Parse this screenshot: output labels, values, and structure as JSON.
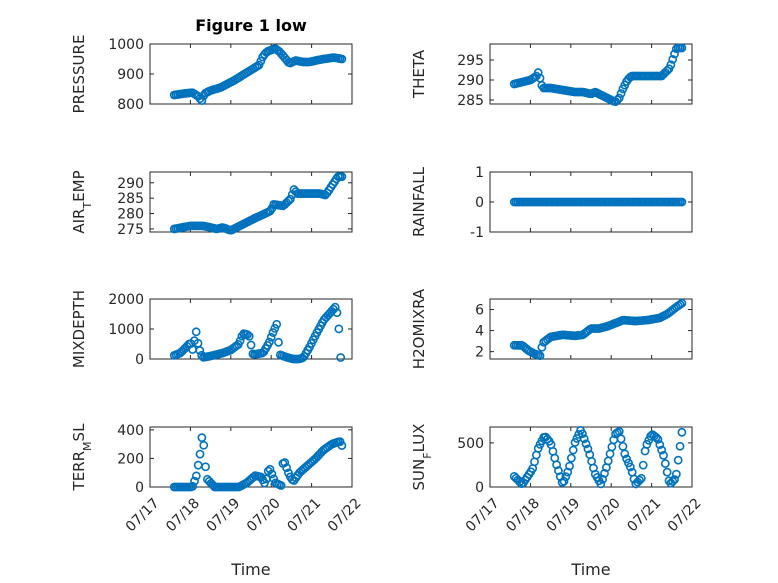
{
  "figure_title": "Figure 1 low",
  "chart_data": [
    {
      "type": "scatter",
      "name": "pressure",
      "ylabel_main": "PRESSURE",
      "ylabel_sub": "",
      "yticks": [
        "800",
        "900",
        "1000"
      ],
      "ylim": [
        800,
        1000
      ],
      "xticks": [
        "07/17",
        "07/18",
        "07/19",
        "07/20",
        "07/21",
        "07/22"
      ],
      "xlim": [
        0,
        5
      ],
      "show_xtick_labels": false,
      "xlabel": "",
      "grid": "on",
      "color": "#0072BD",
      "keypoints": [
        [
          0.6,
          830
        ],
        [
          0.85,
          835
        ],
        [
          1.05,
          838
        ],
        [
          1.2,
          825
        ],
        [
          1.28,
          810
        ],
        [
          1.35,
          835
        ],
        [
          1.5,
          845
        ],
        [
          1.75,
          855
        ],
        [
          2.1,
          880
        ],
        [
          2.4,
          905
        ],
        [
          2.7,
          930
        ],
        [
          2.8,
          960
        ],
        [
          2.9,
          975
        ],
        [
          3.0,
          980
        ],
        [
          3.1,
          985
        ],
        [
          3.2,
          975
        ],
        [
          3.3,
          960
        ],
        [
          3.45,
          935
        ],
        [
          3.6,
          945
        ],
        [
          3.8,
          940
        ],
        [
          3.95,
          940
        ],
        [
          4.1,
          945
        ],
        [
          4.3,
          950
        ],
        [
          4.55,
          955
        ],
        [
          4.75,
          950
        ]
      ]
    },
    {
      "type": "scatter",
      "name": "theta",
      "ylabel_main": "THETA",
      "ylabel_sub": "",
      "yticks": [
        "285",
        "290",
        "295"
      ],
      "ylim": [
        284,
        299
      ],
      "xticks": [
        "07/17",
        "07/18",
        "07/19",
        "07/20",
        "07/21",
        "07/22"
      ],
      "xlim": [
        0,
        5
      ],
      "show_xtick_labels": false,
      "xlabel": "",
      "grid": "on",
      "color": "#0072BD",
      "keypoints": [
        [
          0.6,
          289
        ],
        [
          0.8,
          289.5
        ],
        [
          1.0,
          290
        ],
        [
          1.15,
          291
        ],
        [
          1.2,
          292
        ],
        [
          1.3,
          288
        ],
        [
          1.5,
          288
        ],
        [
          1.8,
          287.5
        ],
        [
          2.1,
          287
        ],
        [
          2.3,
          287
        ],
        [
          2.5,
          286.5
        ],
        [
          2.6,
          287
        ],
        [
          2.8,
          286
        ],
        [
          3.0,
          285
        ],
        [
          3.1,
          284.5
        ],
        [
          3.2,
          285.5
        ],
        [
          3.3,
          288
        ],
        [
          3.4,
          290
        ],
        [
          3.5,
          291
        ],
        [
          3.8,
          291
        ],
        [
          4.1,
          291
        ],
        [
          4.25,
          291
        ],
        [
          4.35,
          292
        ],
        [
          4.45,
          293
        ],
        [
          4.55,
          296
        ],
        [
          4.62,
          298
        ],
        [
          4.75,
          298
        ]
      ]
    },
    {
      "type": "scatter",
      "name": "air_temp",
      "ylabel_main": "AIR",
      "ylabel_sub": "T",
      "ylabel_after": "EMP",
      "yticks": [
        "275",
        "280",
        "285",
        "290"
      ],
      "ylim": [
        274,
        293.5
      ],
      "xticks": [
        "07/17",
        "07/18",
        "07/19",
        "07/20",
        "07/21",
        "07/22"
      ],
      "xlim": [
        0,
        5
      ],
      "show_xtick_labels": false,
      "xlabel": "",
      "grid": "on",
      "color": "#0072BD",
      "keypoints": [
        [
          0.6,
          275
        ],
        [
          0.8,
          275.5
        ],
        [
          1.0,
          276
        ],
        [
          1.3,
          276
        ],
        [
          1.5,
          275.5
        ],
        [
          1.65,
          275
        ],
        [
          1.8,
          275.5
        ],
        [
          2.0,
          274.5
        ],
        [
          2.15,
          275.5
        ],
        [
          2.3,
          276.5
        ],
        [
          2.6,
          278.5
        ],
        [
          2.85,
          280
        ],
        [
          3.0,
          281
        ],
        [
          3.05,
          283
        ],
        [
          3.3,
          282.5
        ],
        [
          3.5,
          285
        ],
        [
          3.55,
          288
        ],
        [
          3.65,
          286.5
        ],
        [
          3.9,
          286.5
        ],
        [
          4.2,
          286.5
        ],
        [
          4.35,
          286
        ],
        [
          4.45,
          288
        ],
        [
          4.55,
          290
        ],
        [
          4.65,
          292
        ],
        [
          4.75,
          292
        ]
      ]
    },
    {
      "type": "scatter",
      "name": "rainfall",
      "ylabel_main": "RAINFALL",
      "ylabel_sub": "",
      "yticks": [
        "-1",
        "0",
        "1"
      ],
      "ylim": [
        -1,
        1
      ],
      "xticks": [
        "07/17",
        "07/18",
        "07/19",
        "07/20",
        "07/21",
        "07/22"
      ],
      "xlim": [
        0,
        5
      ],
      "show_xtick_labels": false,
      "xlabel": "",
      "grid": "on",
      "color": "#0072BD",
      "keypoints": [
        [
          0.6,
          0
        ],
        [
          4.75,
          0
        ]
      ]
    },
    {
      "type": "scatter",
      "name": "mixdepth",
      "ylabel_main": "MIXDEPTH",
      "ylabel_sub": "",
      "yticks": [
        "0",
        "1000",
        "2000"
      ],
      "ylim": [
        0,
        2000
      ],
      "xticks": [
        "07/17",
        "07/18",
        "07/19",
        "07/20",
        "07/21",
        "07/22"
      ],
      "xlim": [
        0,
        5
      ],
      "show_xtick_labels": false,
      "xlabel": "",
      "grid": "on",
      "color": "#0072BD",
      "keypoints": [
        [
          0.6,
          120
        ],
        [
          0.75,
          200
        ],
        [
          0.9,
          400
        ],
        [
          1.0,
          550
        ],
        [
          1.05,
          300
        ],
        [
          1.15,
          950
        ],
        [
          1.2,
          400
        ],
        [
          1.3,
          50
        ],
        [
          1.5,
          100
        ],
        [
          1.8,
          200
        ],
        [
          2.0,
          300
        ],
        [
          2.2,
          500
        ],
        [
          2.3,
          850
        ],
        [
          2.45,
          800
        ],
        [
          2.55,
          150
        ],
        [
          2.8,
          200
        ],
        [
          2.95,
          550
        ],
        [
          3.05,
          900
        ],
        [
          3.15,
          1200
        ],
        [
          3.2,
          150
        ],
        [
          3.4,
          50
        ],
        [
          3.55,
          0
        ],
        [
          3.7,
          0
        ],
        [
          3.8,
          50
        ],
        [
          3.95,
          400
        ],
        [
          4.1,
          800
        ],
        [
          4.3,
          1300
        ],
        [
          4.5,
          1600
        ],
        [
          4.6,
          1750
        ],
        [
          4.65,
          1400
        ],
        [
          4.7,
          600
        ],
        [
          4.72,
          50
        ]
      ]
    },
    {
      "type": "scatter",
      "name": "h2omixra",
      "ylabel_main": "H2OMIXRA",
      "ylabel_sub": "",
      "yticks": [
        "2",
        "4",
        "6"
      ],
      "ylim": [
        1.3,
        7
      ],
      "xticks": [
        "07/17",
        "07/18",
        "07/19",
        "07/20",
        "07/21",
        "07/22"
      ],
      "xlim": [
        0,
        5
      ],
      "show_xtick_labels": false,
      "xlabel": "",
      "grid": "on",
      "color": "#0072BD",
      "keypoints": [
        [
          0.6,
          2.6
        ],
        [
          0.8,
          2.6
        ],
        [
          0.95,
          2.1
        ],
        [
          1.1,
          1.8
        ],
        [
          1.25,
          1.6
        ],
        [
          1.3,
          2.8
        ],
        [
          1.5,
          3.4
        ],
        [
          1.8,
          3.6
        ],
        [
          2.1,
          3.5
        ],
        [
          2.3,
          3.6
        ],
        [
          2.5,
          4.2
        ],
        [
          2.7,
          4.2
        ],
        [
          2.9,
          4.4
        ],
        [
          3.1,
          4.7
        ],
        [
          3.3,
          5.0
        ],
        [
          3.6,
          4.9
        ],
        [
          3.9,
          5.0
        ],
        [
          4.2,
          5.2
        ],
        [
          4.4,
          5.6
        ],
        [
          4.6,
          6.2
        ],
        [
          4.75,
          6.6
        ]
      ]
    },
    {
      "type": "scatter",
      "name": "terr_msl",
      "ylabel_main": "TERR",
      "ylabel_sub": "M",
      "ylabel_after": "SL",
      "yticks": [
        "0",
        "200",
        "400"
      ],
      "ylim": [
        0,
        420
      ],
      "xticks": [
        "07/17",
        "07/18",
        "07/19",
        "07/20",
        "07/21",
        "07/22"
      ],
      "xlim": [
        0,
        5
      ],
      "show_xtick_labels": true,
      "xlabel": "Time",
      "grid": "on",
      "color": "#0072BD",
      "keypoints": [
        [
          0.6,
          0
        ],
        [
          0.9,
          0
        ],
        [
          1.05,
          0
        ],
        [
          1.15,
          80
        ],
        [
          1.25,
          250
        ],
        [
          1.3,
          390
        ],
        [
          1.4,
          60
        ],
        [
          1.6,
          0
        ],
        [
          1.9,
          0
        ],
        [
          2.2,
          0
        ],
        [
          2.4,
          30
        ],
        [
          2.6,
          80
        ],
        [
          2.75,
          70
        ],
        [
          2.85,
          20
        ],
        [
          2.95,
          140
        ],
        [
          3.1,
          30
        ],
        [
          3.25,
          10
        ],
        [
          3.3,
          200
        ],
        [
          3.45,
          80
        ],
        [
          3.55,
          40
        ],
        [
          3.7,
          100
        ],
        [
          3.9,
          150
        ],
        [
          4.1,
          200
        ],
        [
          4.3,
          260
        ],
        [
          4.5,
          300
        ],
        [
          4.7,
          320
        ],
        [
          4.75,
          290
        ]
      ]
    },
    {
      "type": "scatter",
      "name": "sun_flux",
      "ylabel_main": "SUN",
      "ylabel_sub": "F",
      "ylabel_after": "LUX",
      "yticks": [
        "0",
        "500"
      ],
      "ylim": [
        0,
        680
      ],
      "xticks": [
        "07/17",
        "07/18",
        "07/19",
        "07/20",
        "07/21",
        "07/22"
      ],
      "xlim": [
        0,
        5
      ],
      "show_xtick_labels": true,
      "xlabel": "Time",
      "grid": "on",
      "color": "#0072BD",
      "keypoints": [
        [
          0.6,
          120
        ],
        [
          0.8,
          30
        ],
        [
          1.05,
          200
        ],
        [
          1.2,
          450
        ],
        [
          1.35,
          580
        ],
        [
          1.5,
          500
        ],
        [
          1.65,
          250
        ],
        [
          1.8,
          30
        ],
        [
          1.95,
          200
        ],
        [
          2.1,
          500
        ],
        [
          2.25,
          650
        ],
        [
          2.45,
          400
        ],
        [
          2.6,
          150
        ],
        [
          2.75,
          30
        ],
        [
          2.9,
          250
        ],
        [
          3.1,
          600
        ],
        [
          3.2,
          630
        ],
        [
          3.35,
          350
        ],
        [
          3.5,
          200
        ],
        [
          3.6,
          30
        ],
        [
          3.75,
          100
        ],
        [
          3.85,
          450
        ],
        [
          4.0,
          600
        ],
        [
          4.15,
          550
        ],
        [
          4.3,
          350
        ],
        [
          4.45,
          30
        ],
        [
          4.6,
          100
        ],
        [
          4.75,
          620
        ]
      ]
    }
  ]
}
